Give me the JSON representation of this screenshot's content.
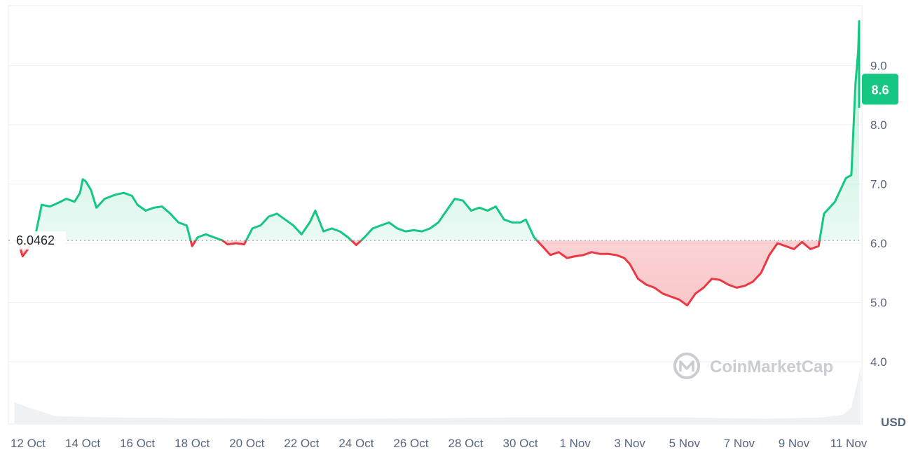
{
  "chart_data": {
    "type": "line",
    "currency_label": "USD",
    "baseline_value": 6.0462,
    "baseline_label": "6.0462",
    "current_value": 8.6,
    "current_label": "8.6",
    "watermark": "CoinMarketCap",
    "ylim": [
      3.0,
      10.0
    ],
    "y_ticks": [
      {
        "value": 4.0,
        "label": "4.0"
      },
      {
        "value": 5.0,
        "label": "5.0"
      },
      {
        "value": 6.0,
        "label": "6.0"
      },
      {
        "value": 7.0,
        "label": "7.0"
      },
      {
        "value": 8.0,
        "label": "8.0"
      },
      {
        "value": 9.0,
        "label": "9.0"
      }
    ],
    "x_ticks": [
      {
        "day": 0,
        "label": "12 Oct"
      },
      {
        "day": 2,
        "label": "14 Oct"
      },
      {
        "day": 4,
        "label": "16 Oct"
      },
      {
        "day": 6,
        "label": "18 Oct"
      },
      {
        "day": 8,
        "label": "20 Oct"
      },
      {
        "day": 10,
        "label": "22 Oct"
      },
      {
        "day": 12,
        "label": "24 Oct"
      },
      {
        "day": 14,
        "label": "26 Oct"
      },
      {
        "day": 16,
        "label": "28 Oct"
      },
      {
        "day": 18,
        "label": "30 Oct"
      },
      {
        "day": 20,
        "label": "1 Nov"
      },
      {
        "day": 22,
        "label": "3 Nov"
      },
      {
        "day": 24,
        "label": "5 Nov"
      },
      {
        "day": 26,
        "label": "7 Nov"
      },
      {
        "day": 28,
        "label": "9 Nov"
      },
      {
        "day": 30,
        "label": "11 Nov"
      }
    ],
    "xlim": [
      -0.5,
      30.5
    ],
    "price_series": {
      "x": [
        -0.5,
        -0.35,
        -0.2,
        0.0,
        0.3,
        0.5,
        0.8,
        1.1,
        1.4,
        1.7,
        1.9,
        2.0,
        2.1,
        2.3,
        2.5,
        2.8,
        3.2,
        3.5,
        3.8,
        4.0,
        4.3,
        4.6,
        4.9,
        5.2,
        5.5,
        5.8,
        6.0,
        6.2,
        6.5,
        6.8,
        7.1,
        7.3,
        7.6,
        7.9,
        8.2,
        8.5,
        8.8,
        9.1,
        9.4,
        9.7,
        10.0,
        10.3,
        10.5,
        10.8,
        11.1,
        11.4,
        11.7,
        12.0,
        12.3,
        12.6,
        12.9,
        13.2,
        13.5,
        13.8,
        14.1,
        14.4,
        14.7,
        15.0,
        15.3,
        15.6,
        15.9,
        16.2,
        16.5,
        16.8,
        17.1,
        17.4,
        17.7,
        18.0,
        18.2,
        18.5,
        18.8,
        19.1,
        19.4,
        19.7,
        20.0,
        20.3,
        20.6,
        20.9,
        21.2,
        21.5,
        21.8,
        22.0,
        22.3,
        22.6,
        22.9,
        23.2,
        23.5,
        23.8,
        24.1,
        24.4,
        24.7,
        25.0,
        25.3,
        25.6,
        25.9,
        26.2,
        26.5,
        26.8,
        27.1,
        27.4,
        27.7,
        28.0,
        28.3,
        28.6,
        28.9,
        29.1,
        29.3,
        29.5,
        29.7,
        29.9,
        30.1,
        30.25,
        30.35,
        30.45,
        30.55,
        30.65,
        30.75,
        30.85,
        30.95,
        31.02
      ],
      "y": [
        6.05,
        6.02,
        5.78,
        5.9,
        6.2,
        6.65,
        6.62,
        6.68,
        6.75,
        6.7,
        6.85,
        7.08,
        7.05,
        6.9,
        6.6,
        6.75,
        6.82,
        6.85,
        6.8,
        6.65,
        6.55,
        6.6,
        6.62,
        6.5,
        6.35,
        6.3,
        5.95,
        6.1,
        6.15,
        6.1,
        6.05,
        5.98,
        6.0,
        5.98,
        6.25,
        6.3,
        6.45,
        6.5,
        6.4,
        6.3,
        6.15,
        6.35,
        6.55,
        6.2,
        6.25,
        6.2,
        6.1,
        5.97,
        6.1,
        6.25,
        6.3,
        6.35,
        6.25,
        6.2,
        6.22,
        6.2,
        6.25,
        6.35,
        6.55,
        6.75,
        6.72,
        6.55,
        6.6,
        6.55,
        6.62,
        6.4,
        6.35,
        6.35,
        6.4,
        6.1,
        5.95,
        5.8,
        5.85,
        5.75,
        5.78,
        5.8,
        5.85,
        5.82,
        5.82,
        5.8,
        5.75,
        5.65,
        5.4,
        5.3,
        5.25,
        5.15,
        5.1,
        5.05,
        4.95,
        5.15,
        5.25,
        5.4,
        5.38,
        5.3,
        5.25,
        5.28,
        5.35,
        5.5,
        5.8,
        6.0,
        5.95,
        5.9,
        6.02,
        5.9,
        5.95,
        6.5,
        6.6,
        6.7,
        6.9,
        7.1,
        7.15,
        8.7,
        9.25,
        9.75,
        9.5,
        9.7,
        9.4,
        9.0,
        8.3,
        8.6
      ]
    },
    "volume_series": {
      "x": [
        -0.5,
        0.0,
        1.0,
        3.0,
        6.0,
        9.0,
        12.0,
        15.0,
        18.0,
        21.0,
        24.0,
        27.0,
        29.0,
        29.8,
        30.1,
        30.3,
        30.6,
        31.02
      ],
      "v": [
        0.33,
        0.25,
        0.12,
        0.1,
        0.09,
        0.08,
        0.08,
        0.09,
        0.1,
        0.1,
        0.1,
        0.08,
        0.1,
        0.14,
        0.25,
        0.6,
        0.85,
        0.95
      ]
    },
    "volume_max_label": "",
    "colors": {
      "up": "#16c784",
      "down": "#ea3943",
      "up_fill": "#16c784",
      "down_fill": "#ea3943",
      "grid": "#eff2f5",
      "axis_text": "#58667e",
      "baseline_dot": "#a6b0c3",
      "volume": "#eff2f5",
      "badge_bg": "#16c784",
      "badge_text": "#ffffff"
    }
  }
}
